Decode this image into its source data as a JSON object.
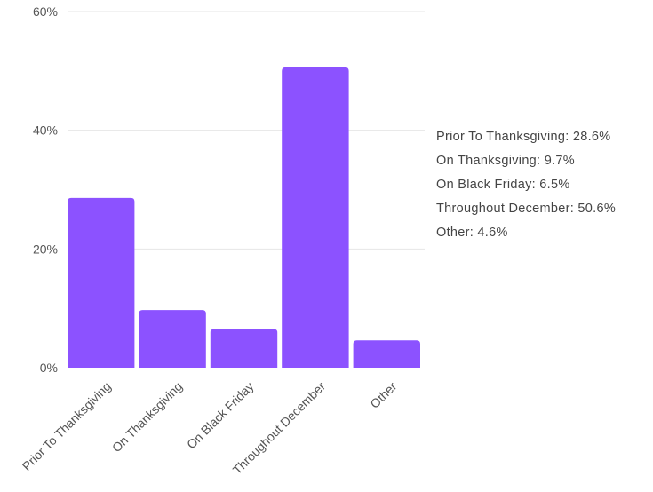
{
  "chart_data": {
    "type": "bar",
    "categories": [
      "Prior To Thanksgiving",
      "On Thanksgiving",
      "On Black Friday",
      "Throughout December",
      "Other"
    ],
    "values": [
      28.6,
      9.7,
      6.5,
      50.6,
      4.6
    ],
    "ylim": [
      0,
      60
    ],
    "yticks": [
      0,
      20,
      40,
      60
    ],
    "ytick_labels": [
      "0%",
      "20%",
      "40%",
      "60%"
    ],
    "grid": true,
    "bar_color": "#8c52ff",
    "legend_position": "right",
    "legend": [
      "Prior To Thanksgiving: 28.6%",
      "On Thanksgiving: 9.7%",
      "On Black Friday: 6.5%",
      "Throughout December: 50.6%",
      "Other: 4.6%"
    ]
  }
}
